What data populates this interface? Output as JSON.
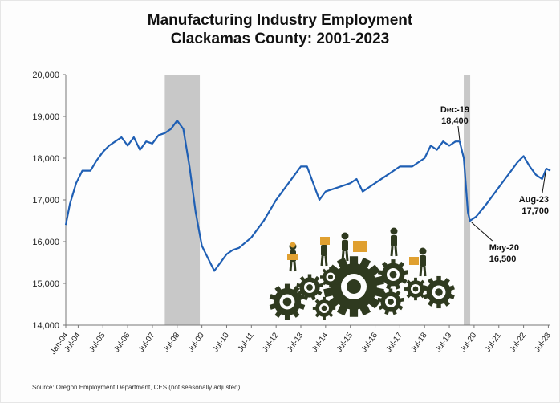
{
  "chart_data": {
    "type": "line",
    "title": "Manufacturing Industry Employment",
    "subtitle": "Clackamas County: 2001-2023",
    "ylim": [
      14000,
      20000
    ],
    "y_ticks": [
      14000,
      15000,
      16000,
      17000,
      18000,
      19000,
      20000
    ],
    "y_tick_labels": [
      "14,000",
      "15,000",
      "16,000",
      "17,000",
      "18,000",
      "19,000",
      "20,000"
    ],
    "x_tick_labels": [
      "Jan-04",
      "Jul-04",
      "Jul-05",
      "Jul-06",
      "Jul-07",
      "Jul-08",
      "Jul-09",
      "Jul-10",
      "Jul-11",
      "Jul-12",
      "Jul-13",
      "Jul-14",
      "Jul-15",
      "Jul-16",
      "Jul-17",
      "Jul-18",
      "Jul-19",
      "Jul-20",
      "Jul-21",
      "Jul-22",
      "Jul-23"
    ],
    "recessions": [
      {
        "start": "Jan-08",
        "end": "Jun-09"
      },
      {
        "start": "Feb-20",
        "end": "Apr-20"
      }
    ],
    "series": [
      {
        "color": "#1f5fb4",
        "points": [
          [
            "Jan-04",
            16400
          ],
          [
            "Mar-04",
            16900
          ],
          [
            "Jun-04",
            17400
          ],
          [
            "Sep-04",
            17700
          ],
          [
            "Jan-05",
            17700
          ],
          [
            "Apr-05",
            17950
          ],
          [
            "Jul-05",
            18150
          ],
          [
            "Oct-05",
            18300
          ],
          [
            "Jan-06",
            18400
          ],
          [
            "Apr-06",
            18500
          ],
          [
            "Jul-06",
            18300
          ],
          [
            "Oct-06",
            18500
          ],
          [
            "Jan-07",
            18200
          ],
          [
            "Apr-07",
            18400
          ],
          [
            "Jul-07",
            18350
          ],
          [
            "Oct-07",
            18550
          ],
          [
            "Jan-08",
            18600
          ],
          [
            "Apr-08",
            18700
          ],
          [
            "Jul-08",
            18900
          ],
          [
            "Oct-08",
            18700
          ],
          [
            "Jan-09",
            17800
          ],
          [
            "Apr-09",
            16700
          ],
          [
            "Jul-09",
            15900
          ],
          [
            "Oct-09",
            15600
          ],
          [
            "Jan-10",
            15300
          ],
          [
            "Apr-10",
            15500
          ],
          [
            "Jul-10",
            15700
          ],
          [
            "Oct-10",
            15800
          ],
          [
            "Jan-11",
            15850
          ],
          [
            "Jul-11",
            16100
          ],
          [
            "Jan-12",
            16500
          ],
          [
            "Jul-12",
            17000
          ],
          [
            "Jan-13",
            17400
          ],
          [
            "Jul-13",
            17800
          ],
          [
            "Oct-13",
            17800
          ],
          [
            "Jan-14",
            17400
          ],
          [
            "Apr-14",
            17000
          ],
          [
            "Jul-14",
            17200
          ],
          [
            "Jan-15",
            17300
          ],
          [
            "Jul-15",
            17400
          ],
          [
            "Oct-15",
            17500
          ],
          [
            "Jan-16",
            17200
          ],
          [
            "Jul-16",
            17400
          ],
          [
            "Jan-17",
            17600
          ],
          [
            "Jul-17",
            17800
          ],
          [
            "Jan-18",
            17800
          ],
          [
            "Jul-18",
            18000
          ],
          [
            "Oct-18",
            18300
          ],
          [
            "Jan-19",
            18200
          ],
          [
            "Apr-19",
            18400
          ],
          [
            "Jul-19",
            18300
          ],
          [
            "Oct-19",
            18400
          ],
          [
            "Dec-19",
            18400
          ],
          [
            "Feb-20",
            18000
          ],
          [
            "Apr-20",
            16700
          ],
          [
            "May-20",
            16500
          ],
          [
            "Aug-20",
            16600
          ],
          [
            "Jan-21",
            16900
          ],
          [
            "Jul-21",
            17300
          ],
          [
            "Jan-22",
            17700
          ],
          [
            "Apr-22",
            17900
          ],
          [
            "Jul-22",
            18050
          ],
          [
            "Oct-22",
            17800
          ],
          [
            "Jan-23",
            17600
          ],
          [
            "Apr-23",
            17500
          ],
          [
            "Jun-23",
            17750
          ],
          [
            "Aug-23",
            17700
          ]
        ]
      }
    ],
    "annotations": [
      {
        "label": "Dec-19",
        "value": "18,400",
        "at": "Dec-19"
      },
      {
        "label": "May-20",
        "value": "16,500",
        "at": "May-20"
      },
      {
        "label": "Aug-23",
        "value": "17,700",
        "at": "Aug-23"
      }
    ],
    "grid": false
  },
  "source_text": "Source: Oregon Employment Department, CES (not seasonally adjusted)",
  "colors": {
    "line": "#1f5fb4",
    "recession_band": "#c8c8c8",
    "gear": "#2f3a1f",
    "accent_box": "#e0a030",
    "axis": "#777777"
  },
  "illustration": "factory-workers-gears-icon"
}
